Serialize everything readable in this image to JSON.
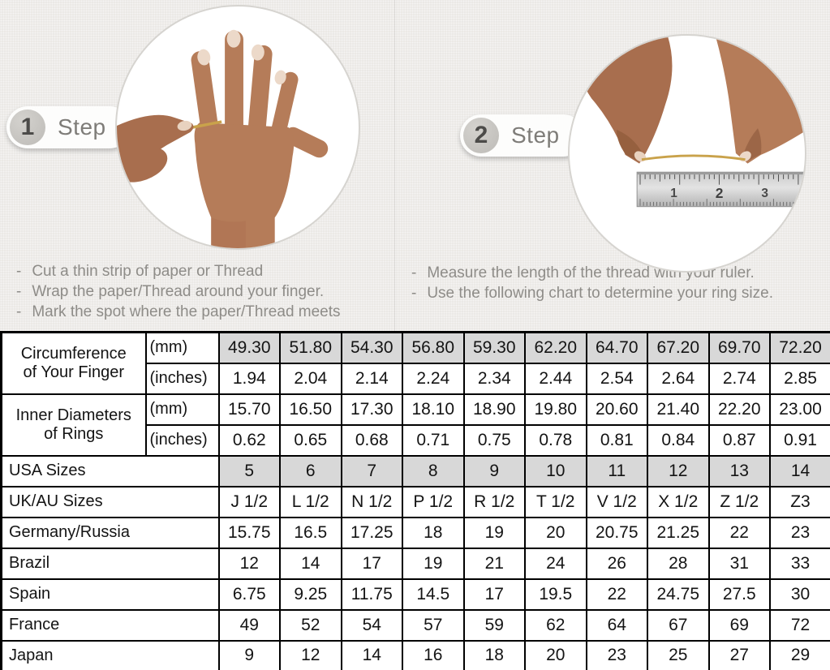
{
  "page": {
    "background_color": "#ebe9e6"
  },
  "steps": [
    {
      "number": "1",
      "label": "Step",
      "bullet": "-",
      "image_alt": "hand with thread wrapped around finger",
      "instructions": [
        "Cut a thin strip of paper or Thread",
        "Wrap the paper/Thread around your finger.",
        "Mark the spot where the paper/Thread meets"
      ]
    },
    {
      "number": "2",
      "label": "Step",
      "bullet": "-",
      "image_alt": "hands measuring thread length with a ruler",
      "instructions": [
        "Measure the length of the thread with your ruler.",
        "Use the following chart to determine your ring size."
      ]
    }
  ],
  "ruler_numbers": [
    "1",
    "2",
    "3"
  ],
  "size_chart": {
    "shaded_color": "#d8d8d8",
    "row_groups": [
      {
        "label_lines": [
          "Circumference",
          "of Your Finger"
        ],
        "sub_rows": [
          {
            "unit": "(mm)",
            "shaded": true,
            "values": [
              "49.30",
              "51.80",
              "54.30",
              "56.80",
              "59.30",
              "62.20",
              "64.70",
              "67.20",
              "69.70",
              "72.20"
            ]
          },
          {
            "unit": "(inches)",
            "shaded": false,
            "values": [
              "1.94",
              "2.04",
              "2.14",
              "2.24",
              "2.34",
              "2.44",
              "2.54",
              "2.64",
              "2.74",
              "2.85"
            ]
          }
        ]
      },
      {
        "label_lines": [
          "Inner Diameters",
          "of Rings"
        ],
        "sub_rows": [
          {
            "unit": "(mm)",
            "shaded": false,
            "values": [
              "15.70",
              "16.50",
              "17.30",
              "18.10",
              "18.90",
              "19.80",
              "20.60",
              "21.40",
              "22.20",
              "23.00"
            ]
          },
          {
            "unit": "(inches)",
            "shaded": false,
            "values": [
              "0.62",
              "0.65",
              "0.68",
              "0.71",
              "0.75",
              "0.78",
              "0.81",
              "0.84",
              "0.87",
              "0.91"
            ]
          }
        ]
      }
    ],
    "single_rows": [
      {
        "label": "USA Sizes",
        "shaded": true,
        "values": [
          "5",
          "6",
          "7",
          "8",
          "9",
          "10",
          "11",
          "12",
          "13",
          "14"
        ]
      },
      {
        "label": "UK/AU Sizes",
        "shaded": false,
        "values": [
          "J 1/2",
          "L 1/2",
          "N 1/2",
          "P 1/2",
          "R 1/2",
          "T 1/2",
          "V 1/2",
          "X 1/2",
          "Z 1/2",
          "Z3"
        ]
      },
      {
        "label": "Germany/Russia",
        "shaded": false,
        "values": [
          "15.75",
          "16.5",
          "17.25",
          "18",
          "19",
          "20",
          "20.75",
          "21.25",
          "22",
          "23"
        ]
      },
      {
        "label": "Brazil",
        "shaded": false,
        "values": [
          "12",
          "14",
          "17",
          "19",
          "21",
          "24",
          "26",
          "28",
          "31",
          "33"
        ]
      },
      {
        "label": "Spain",
        "shaded": false,
        "values": [
          "6.75",
          "9.25",
          "11.75",
          "14.5",
          "17",
          "19.5",
          "22",
          "24.75",
          "27.5",
          "30"
        ]
      },
      {
        "label": "France",
        "shaded": false,
        "values": [
          "49",
          "52",
          "54",
          "57",
          "59",
          "62",
          "64",
          "67",
          "69",
          "72"
        ]
      },
      {
        "label": "Japan",
        "shaded": false,
        "values": [
          "9",
          "12",
          "14",
          "16",
          "18",
          "20",
          "23",
          "25",
          "27",
          "29"
        ]
      }
    ]
  }
}
